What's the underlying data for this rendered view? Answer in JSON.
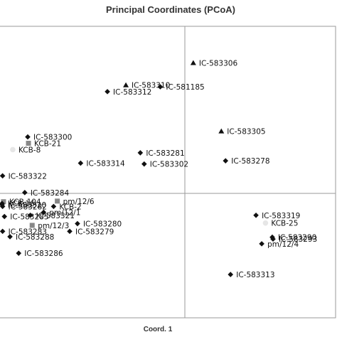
{
  "chart_data": {
    "type": "scatter",
    "title": "Principal Coordinates (PCoA)",
    "xlabel": "Coord. 1",
    "ylabel": "",
    "xlim": [
      -1.0,
      1.0
    ],
    "ylim": [
      -1.0,
      1.0
    ],
    "zero_lines": true,
    "grid": false,
    "points": [
      {
        "label": "IC-583306",
        "x": 0.056,
        "y": 0.781,
        "marker": "triangle",
        "color": "#111111"
      },
      {
        "label": "IC-583310",
        "x": -0.319,
        "y": 0.648,
        "marker": "triangle",
        "color": "#111111"
      },
      {
        "label": "IC-581185",
        "x": -0.133,
        "y": 0.638,
        "marker": "diamond",
        "color": "#111111"
      },
      {
        "label": "IC-583312",
        "x": -0.419,
        "y": 0.609,
        "marker": "diamond",
        "color": "#111111"
      },
      {
        "label": "IC-583305",
        "x": 0.242,
        "y": 0.372,
        "marker": "triangle",
        "color": "#111111"
      },
      {
        "label": "IC-583300",
        "x": -0.85,
        "y": 0.338,
        "marker": "diamond",
        "color": "#111111"
      },
      {
        "label": "KCB-21",
        "x": -0.846,
        "y": 0.3,
        "marker": "square",
        "color": "#888888"
      },
      {
        "label": "KCB-8",
        "x": -0.931,
        "y": 0.262,
        "marker": "circle",
        "color": "#e6e6e6"
      },
      {
        "label": "IC-583281",
        "x": -0.241,
        "y": 0.243,
        "marker": "diamond",
        "color": "#111111"
      },
      {
        "label": "IC-583314",
        "x": -0.564,
        "y": 0.181,
        "marker": "diamond",
        "color": "#111111"
      },
      {
        "label": "IC-583302",
        "x": -0.22,
        "y": 0.176,
        "marker": "diamond",
        "color": "#111111"
      },
      {
        "label": "IC-583278",
        "x": 0.27,
        "y": 0.195,
        "marker": "diamond",
        "color": "#111111"
      },
      {
        "label": "IC-583322",
        "x": -0.986,
        "y": 0.105,
        "marker": "diamond",
        "color": "#111111"
      },
      {
        "label": "IC-583284",
        "x": -0.866,
        "y": 0.005,
        "marker": "diamond",
        "color": "#111111"
      },
      {
        "label": "KCB-104",
        "x": -0.981,
        "y": -0.067,
        "marker": "square",
        "color": "#888888"
      },
      {
        "label": "KCB-16",
        "x": -0.989,
        "y": -0.081,
        "marker": "diamond",
        "color": "#111111"
      },
      {
        "label": "IC-583320",
        "x": -0.989,
        "y": -0.09,
        "marker": "diamond",
        "color": "#111111"
      },
      {
        "label": "IC-583282",
        "x": -0.986,
        "y": -0.105,
        "marker": "diamond",
        "color": "#111111"
      },
      {
        "label": "pm/12/6",
        "x": -0.69,
        "y": -0.062,
        "marker": "square",
        "color": "#888888"
      },
      {
        "label": "KCB-2",
        "x": -0.71,
        "y": -0.105,
        "marker": "diamond",
        "color": "#111111"
      },
      {
        "label": "pm/12/1",
        "x": -0.764,
        "y": -0.152,
        "marker": "diamond",
        "color": "#111111"
      },
      {
        "label": "IC-583321",
        "x": -0.836,
        "y": -0.176,
        "marker": "diamond",
        "color": "#111111"
      },
      {
        "label": "IC-583285",
        "x": -0.976,
        "y": -0.186,
        "marker": "diamond",
        "color": "#111111"
      },
      {
        "label": "IC-583280",
        "x": -0.581,
        "y": -0.243,
        "marker": "diamond",
        "color": "#111111"
      },
      {
        "label": "pm/12/3",
        "x": -0.826,
        "y": -0.257,
        "marker": "square",
        "color": "#888888"
      },
      {
        "label": "IC-583283",
        "x": -0.986,
        "y": -0.305,
        "marker": "diamond",
        "color": "#111111"
      },
      {
        "label": "IC-583279",
        "x": -0.623,
        "y": -0.305,
        "marker": "diamond",
        "color": "#111111"
      },
      {
        "label": "IC-583288",
        "x": -0.946,
        "y": -0.348,
        "marker": "diamond",
        "color": "#111111"
      },
      {
        "label": "IC-583286",
        "x": -0.899,
        "y": -0.481,
        "marker": "diamond",
        "color": "#111111"
      },
      {
        "label": "IC-583319",
        "x": 0.472,
        "y": -0.176,
        "marker": "diamond",
        "color": "#111111"
      },
      {
        "label": "KCB-25",
        "x": 0.535,
        "y": -0.238,
        "marker": "circle",
        "color": "#e6e6e6"
      },
      {
        "label": "IC-583290",
        "x": 0.58,
        "y": -0.352,
        "marker": "diamond",
        "color": "#111111"
      },
      {
        "label": "IC-583293",
        "x": 0.585,
        "y": -0.367,
        "marker": "diamond",
        "color": "#111111"
      },
      {
        "label": "pm/12/4",
        "x": 0.51,
        "y": -0.405,
        "marker": "diamond",
        "color": "#111111"
      },
      {
        "label": "IC-583313",
        "x": 0.303,
        "y": -0.652,
        "marker": "diamond",
        "color": "#111111"
      }
    ]
  }
}
